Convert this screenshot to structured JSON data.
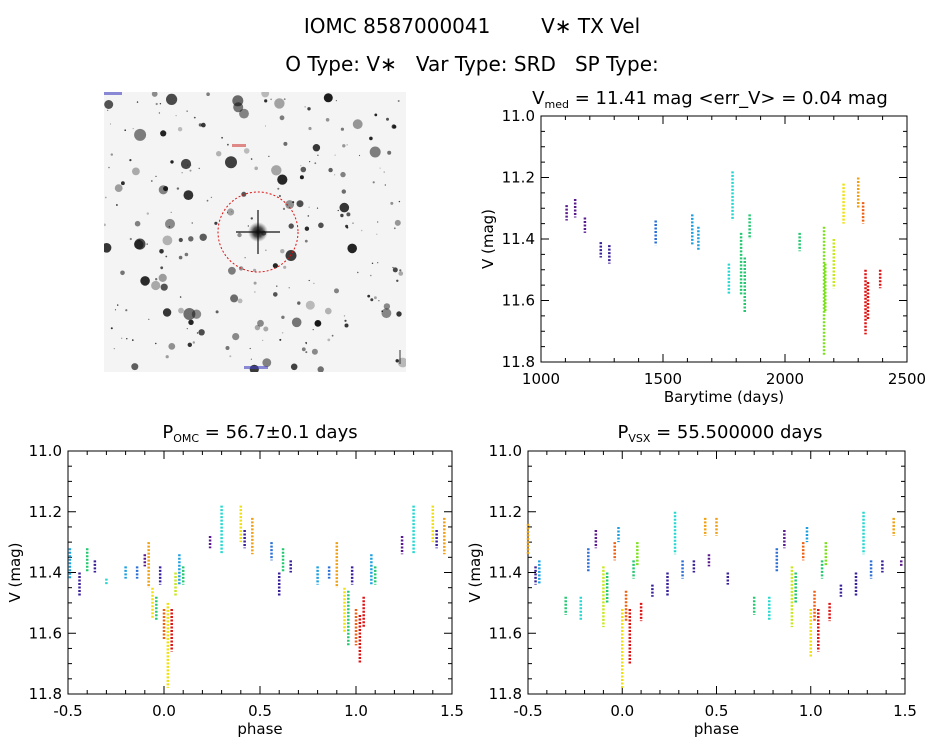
{
  "header": {
    "line1_id": "IOMC 8587000041",
    "line1_name": "V∗ TX Vel",
    "line2": "O Type: V∗   Var Type: SRD   SP Type:"
  },
  "colors": {
    "palette": [
      "#5a1a8c",
      "#3a1f9a",
      "#2a6fd6",
      "#1aa0e0",
      "#22d8d0",
      "#22c870",
      "#7ae01a",
      "#c8e81a",
      "#f0e010",
      "#f0a010",
      "#f06010",
      "#e01010"
    ]
  },
  "panels": {
    "lightcurve": {
      "title_prefix": "V",
      "title_sub": "med",
      "title_rest": " = 11.41 mag <err_V> = 0.04 mag"
    },
    "phase_omc": {
      "title_prefix": "P",
      "title_sub": "OMC",
      "title_rest": " = 56.7±0.1 days"
    },
    "phase_vsx": {
      "title_prefix": "P",
      "title_sub": "VSX",
      "title_rest": " = 55.500000 days"
    }
  },
  "chart_data": [
    {
      "id": "lightcurve",
      "type": "scatter",
      "xlabel": "Barytime (days)",
      "ylabel": "V (mag)",
      "xlim": [
        1000,
        2500
      ],
      "ylim": [
        11.8,
        11.0
      ],
      "y_inverted": true,
      "xticks": [
        1000,
        1500,
        2000,
        2500
      ],
      "yticks": [
        11.0,
        11.2,
        11.4,
        11.6,
        11.8
      ],
      "points": [
        {
          "x": 1105,
          "y": [
            11.29,
            11.34
          ],
          "c": 0
        },
        {
          "x": 1140,
          "y": [
            11.27,
            11.33
          ],
          "c": 0
        },
        {
          "x": 1180,
          "y": [
            11.33,
            11.38
          ],
          "c": 0
        },
        {
          "x": 1245,
          "y": [
            11.41,
            11.46
          ],
          "c": 1
        },
        {
          "x": 1280,
          "y": [
            11.42,
            11.48
          ],
          "c": 1
        },
        {
          "x": 1470,
          "y": [
            11.34,
            11.42
          ],
          "c": 2
        },
        {
          "x": 1620,
          "y": [
            11.32,
            11.42
          ],
          "c": 3
        },
        {
          "x": 1645,
          "y": [
            11.36,
            11.44
          ],
          "c": 3
        },
        {
          "x": 1770,
          "y": [
            11.48,
            11.58
          ],
          "c": 4
        },
        {
          "x": 1785,
          "y": [
            11.18,
            11.34
          ],
          "c": 4
        },
        {
          "x": 1820,
          "y": [
            11.38,
            11.58
          ],
          "c": 5
        },
        {
          "x": 1835,
          "y": [
            11.46,
            11.64
          ],
          "c": 5
        },
        {
          "x": 1855,
          "y": [
            11.32,
            11.4
          ],
          "c": 5
        },
        {
          "x": 2060,
          "y": [
            11.38,
            11.44
          ],
          "c": 5
        },
        {
          "x": 2160,
          "y": [
            11.36,
            11.78
          ],
          "c": 6
        },
        {
          "x": 2165,
          "y": [
            11.48,
            11.64
          ],
          "c": 6
        },
        {
          "x": 2200,
          "y": [
            11.4,
            11.56
          ],
          "c": 7
        },
        {
          "x": 2240,
          "y": [
            11.22,
            11.35
          ],
          "c": 8
        },
        {
          "x": 2300,
          "y": [
            11.2,
            11.3
          ],
          "c": 9
        },
        {
          "x": 2320,
          "y": [
            11.28,
            11.35
          ],
          "c": 10
        },
        {
          "x": 2330,
          "y": [
            11.5,
            11.71
          ],
          "c": 11
        },
        {
          "x": 2340,
          "y": [
            11.54,
            11.66
          ],
          "c": 11
        },
        {
          "x": 2390,
          "y": [
            11.5,
            11.56
          ],
          "c": 11
        }
      ]
    },
    {
      "id": "phase_omc",
      "type": "scatter",
      "xlabel": "phase",
      "ylabel": "V (mag)",
      "xlim": [
        -0.5,
        1.5
      ],
      "ylim": [
        11.8,
        11.0
      ],
      "y_inverted": true,
      "xticks": [
        -0.5,
        0.0,
        0.5,
        1.0,
        1.5
      ],
      "yticks": [
        11.0,
        11.2,
        11.4,
        11.6,
        11.8
      ],
      "points": [
        {
          "x": -0.49,
          "y": [
            11.32,
            11.42
          ],
          "c": 3
        },
        {
          "x": -0.44,
          "y": [
            11.4,
            11.48
          ],
          "c": 1
        },
        {
          "x": -0.4,
          "y": [
            11.32,
            11.4
          ],
          "c": 5
        },
        {
          "x": -0.36,
          "y": [
            11.36,
            11.4
          ],
          "c": 1
        },
        {
          "x": -0.3,
          "y": [
            11.42,
            11.44
          ],
          "c": 4
        },
        {
          "x": -0.2,
          "y": [
            11.38,
            11.42
          ],
          "c": 3
        },
        {
          "x": -0.14,
          "y": [
            11.38,
            11.42
          ],
          "c": 2
        },
        {
          "x": -0.1,
          "y": [
            11.34,
            11.38
          ],
          "c": 0
        },
        {
          "x": -0.08,
          "y": [
            11.3,
            11.45
          ],
          "c": 9
        },
        {
          "x": -0.06,
          "y": [
            11.45,
            11.55
          ],
          "c": 8
        },
        {
          "x": -0.04,
          "y": [
            11.48,
            11.56
          ],
          "c": 5
        },
        {
          "x": -0.02,
          "y": [
            11.38,
            11.44
          ],
          "c": 1
        },
        {
          "x": 0.0,
          "y": [
            11.52,
            11.62
          ],
          "c": 10
        },
        {
          "x": 0.02,
          "y": [
            11.5,
            11.78
          ],
          "c": 8
        },
        {
          "x": 0.04,
          "y": [
            11.52,
            11.66
          ],
          "c": 11
        },
        {
          "x": 0.06,
          "y": [
            11.4,
            11.48
          ],
          "c": 7
        },
        {
          "x": 0.08,
          "y": [
            11.34,
            11.44
          ],
          "c": 3
        },
        {
          "x": 0.1,
          "y": [
            11.38,
            11.44
          ],
          "c": 5
        },
        {
          "x": 0.24,
          "y": [
            11.28,
            11.32
          ],
          "c": 0
        },
        {
          "x": 0.3,
          "y": [
            11.18,
            11.34
          ],
          "c": 4
        },
        {
          "x": 0.4,
          "y": [
            11.18,
            11.3
          ],
          "c": 8
        },
        {
          "x": 0.42,
          "y": [
            11.26,
            11.32
          ],
          "c": 1
        },
        {
          "x": 0.46,
          "y": [
            11.22,
            11.34
          ],
          "c": 9
        },
        {
          "x": 0.56,
          "y": [
            11.3,
            11.36
          ],
          "c": 2
        },
        {
          "x": 0.6,
          "y": [
            11.4,
            11.48
          ],
          "c": 1
        },
        {
          "x": 0.62,
          "y": [
            11.32,
            11.4
          ],
          "c": 5
        },
        {
          "x": 0.66,
          "y": [
            11.36,
            11.4
          ],
          "c": 1
        },
        {
          "x": 0.8,
          "y": [
            11.38,
            11.44
          ],
          "c": 3
        },
        {
          "x": 0.86,
          "y": [
            11.38,
            11.42
          ],
          "c": 2
        },
        {
          "x": 0.9,
          "y": [
            11.3,
            11.45
          ],
          "c": 9
        },
        {
          "x": 0.94,
          "y": [
            11.45,
            11.6
          ],
          "c": 8
        },
        {
          "x": 0.96,
          "y": [
            11.46,
            11.64
          ],
          "c": 5
        },
        {
          "x": 0.98,
          "y": [
            11.38,
            11.44
          ],
          "c": 1
        },
        {
          "x": 1.0,
          "y": [
            11.52,
            11.64
          ],
          "c": 10
        },
        {
          "x": 1.02,
          "y": [
            11.54,
            11.7
          ],
          "c": 11
        },
        {
          "x": 1.04,
          "y": [
            11.48,
            11.58
          ],
          "c": 11
        },
        {
          "x": 1.08,
          "y": [
            11.34,
            11.44
          ],
          "c": 3
        },
        {
          "x": 1.1,
          "y": [
            11.38,
            11.44
          ],
          "c": 5
        },
        {
          "x": 1.24,
          "y": [
            11.28,
            11.34
          ],
          "c": 0
        },
        {
          "x": 1.3,
          "y": [
            11.18,
            11.34
          ],
          "c": 4
        },
        {
          "x": 1.4,
          "y": [
            11.18,
            11.3
          ],
          "c": 8
        },
        {
          "x": 1.42,
          "y": [
            11.26,
            11.32
          ],
          "c": 1
        },
        {
          "x": 1.46,
          "y": [
            11.22,
            11.34
          ],
          "c": 9
        }
      ]
    },
    {
      "id": "phase_vsx",
      "type": "scatter",
      "xlabel": "phase",
      "ylabel": "V (mag)",
      "xlim": [
        -0.5,
        1.5
      ],
      "ylim": [
        11.8,
        11.0
      ],
      "y_inverted": true,
      "xticks": [
        -0.5,
        0.0,
        0.5,
        1.0,
        1.5
      ],
      "yticks": [
        11.0,
        11.2,
        11.4,
        11.6,
        11.8
      ],
      "points": [
        {
          "x": -0.5,
          "y": [
            11.24,
            11.34
          ],
          "c": 9
        },
        {
          "x": -0.46,
          "y": [
            11.38,
            11.44
          ],
          "c": 1
        },
        {
          "x": -0.44,
          "y": [
            11.36,
            11.44
          ],
          "c": 3
        },
        {
          "x": -0.3,
          "y": [
            11.48,
            11.54
          ],
          "c": 5
        },
        {
          "x": -0.22,
          "y": [
            11.48,
            11.56
          ],
          "c": 4
        },
        {
          "x": -0.18,
          "y": [
            11.32,
            11.4
          ],
          "c": 2
        },
        {
          "x": -0.14,
          "y": [
            11.26,
            11.32
          ],
          "c": 0
        },
        {
          "x": -0.1,
          "y": [
            11.38,
            11.58
          ],
          "c": 7
        },
        {
          "x": -0.08,
          "y": [
            11.4,
            11.5
          ],
          "c": 5
        },
        {
          "x": -0.04,
          "y": [
            11.3,
            11.36
          ],
          "c": 10
        },
        {
          "x": -0.02,
          "y": [
            11.25,
            11.3
          ],
          "c": 3
        },
        {
          "x": 0.0,
          "y": [
            11.52,
            11.78
          ],
          "c": 8
        },
        {
          "x": 0.02,
          "y": [
            11.46,
            11.56
          ],
          "c": 10
        },
        {
          "x": 0.04,
          "y": [
            11.52,
            11.7
          ],
          "c": 11
        },
        {
          "x": 0.06,
          "y": [
            11.36,
            11.42
          ],
          "c": 5
        },
        {
          "x": 0.08,
          "y": [
            11.3,
            11.38
          ],
          "c": 6
        },
        {
          "x": 0.1,
          "y": [
            11.5,
            11.56
          ],
          "c": 11
        },
        {
          "x": 0.16,
          "y": [
            11.44,
            11.48
          ],
          "c": 1
        },
        {
          "x": 0.24,
          "y": [
            11.4,
            11.48
          ],
          "c": 1
        },
        {
          "x": 0.28,
          "y": [
            11.2,
            11.34
          ],
          "c": 4
        },
        {
          "x": 0.32,
          "y": [
            11.36,
            11.42
          ],
          "c": 2
        },
        {
          "x": 0.38,
          "y": [
            11.36,
            11.4
          ],
          "c": 1
        },
        {
          "x": 0.44,
          "y": [
            11.22,
            11.28
          ],
          "c": 9
        },
        {
          "x": 0.46,
          "y": [
            11.34,
            11.38
          ],
          "c": 0
        },
        {
          "x": 0.5,
          "y": [
            11.22,
            11.28
          ],
          "c": 9
        },
        {
          "x": 0.56,
          "y": [
            11.4,
            11.44
          ],
          "c": 1
        },
        {
          "x": 0.7,
          "y": [
            11.48,
            11.54
          ],
          "c": 5
        },
        {
          "x": 0.78,
          "y": [
            11.48,
            11.56
          ],
          "c": 4
        },
        {
          "x": 0.82,
          "y": [
            11.32,
            11.4
          ],
          "c": 2
        },
        {
          "x": 0.86,
          "y": [
            11.26,
            11.32
          ],
          "c": 0
        },
        {
          "x": 0.9,
          "y": [
            11.38,
            11.58
          ],
          "c": 7
        },
        {
          "x": 0.92,
          "y": [
            11.4,
            11.5
          ],
          "c": 5
        },
        {
          "x": 0.96,
          "y": [
            11.3,
            11.36
          ],
          "c": 10
        },
        {
          "x": 0.98,
          "y": [
            11.25,
            11.3
          ],
          "c": 3
        },
        {
          "x": 1.0,
          "y": [
            11.52,
            11.68
          ],
          "c": 8
        },
        {
          "x": 1.02,
          "y": [
            11.46,
            11.56
          ],
          "c": 10
        },
        {
          "x": 1.04,
          "y": [
            11.52,
            11.66
          ],
          "c": 11
        },
        {
          "x": 1.06,
          "y": [
            11.36,
            11.42
          ],
          "c": 5
        },
        {
          "x": 1.08,
          "y": [
            11.3,
            11.38
          ],
          "c": 6
        },
        {
          "x": 1.1,
          "y": [
            11.5,
            11.56
          ],
          "c": 11
        },
        {
          "x": 1.16,
          "y": [
            11.44,
            11.48
          ],
          "c": 1
        },
        {
          "x": 1.24,
          "y": [
            11.4,
            11.48
          ],
          "c": 1
        },
        {
          "x": 1.28,
          "y": [
            11.2,
            11.34
          ],
          "c": 4
        },
        {
          "x": 1.32,
          "y": [
            11.36,
            11.42
          ],
          "c": 2
        },
        {
          "x": 1.38,
          "y": [
            11.36,
            11.4
          ],
          "c": 1
        },
        {
          "x": 1.44,
          "y": [
            11.22,
            11.28
          ],
          "c": 9
        },
        {
          "x": 1.48,
          "y": [
            11.36,
            11.38
          ],
          "c": 0
        }
      ]
    }
  ]
}
